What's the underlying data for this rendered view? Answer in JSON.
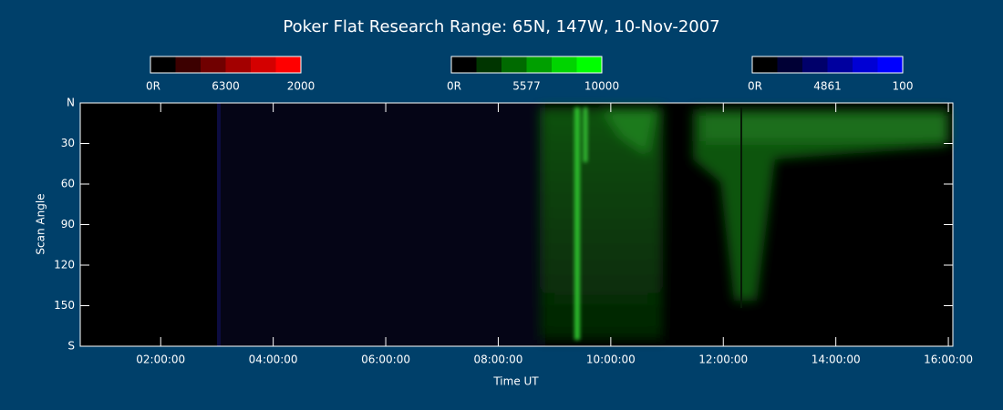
{
  "chart_data": {
    "type": "keogram",
    "title": "Poker Flat Research Range: 65N, 147W, 10-Nov-2007",
    "xlabel": "Time UT",
    "ylabel": "Scan Angle",
    "xlim": [
      0.57,
      16.08
    ],
    "xticks": [
      {
        "value": 2,
        "label": "02:00:00"
      },
      {
        "value": 4,
        "label": "04:00:00"
      },
      {
        "value": 6,
        "label": "06:00:00"
      },
      {
        "value": 8,
        "label": "08:00:00"
      },
      {
        "value": 10,
        "label": "10:00:00"
      },
      {
        "value": 12,
        "label": "12:00:00"
      },
      {
        "value": 14,
        "label": "14:00:00"
      },
      {
        "value": 16,
        "label": "16:00:00"
      }
    ],
    "ylim": [
      0,
      180
    ],
    "yticks": [
      {
        "value": 0,
        "label": "N"
      },
      30,
      60,
      90,
      120,
      150,
      {
        "value": 180,
        "label": "S"
      }
    ],
    "colorbars": [
      {
        "name": "6300",
        "min": {
          "value": 0,
          "label": "0R"
        },
        "max": 2000,
        "colors": [
          "#000000",
          "#3c0000",
          "#700000",
          "#a30000",
          "#d40000",
          "#ff0000"
        ]
      },
      {
        "name": "5577",
        "min": {
          "value": 0,
          "label": "0R"
        },
        "max": 10000,
        "colors": [
          "#000000",
          "#003500",
          "#006a00",
          "#009f00",
          "#00d400",
          "#00ff00"
        ]
      },
      {
        "name": "4861",
        "min": {
          "value": 0,
          "label": "0R"
        },
        "max": 100,
        "colors": [
          "#000000",
          "#000035",
          "#00006a",
          "#00009f",
          "#0000d4",
          "#0000ff"
        ]
      }
    ]
  }
}
